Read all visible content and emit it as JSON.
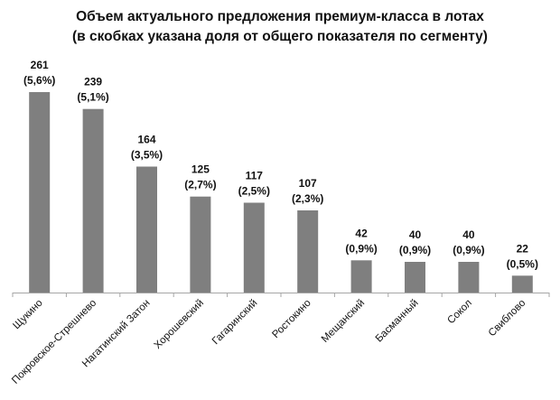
{
  "chart_data": {
    "type": "bar",
    "title": "Объем актуального предложения премиум-класса в лотах",
    "subtitle": "(в скобках указана доля от общего показателя по сегменту)",
    "categories": [
      "Щукино",
      "Покровское-Стрешнево",
      "Нагатинский Затон",
      "Хорошевский",
      "Гагаринский",
      "Ростокино",
      "Мещанский",
      "Басманный",
      "Сокол",
      "Свиблово"
    ],
    "values": [
      261,
      239,
      164,
      125,
      117,
      107,
      42,
      40,
      40,
      22
    ],
    "shares": [
      "(5,6%)",
      "(5,1%)",
      "(3,5%)",
      "(2,7%)",
      "(2,5%)",
      "(2,3%)",
      "(0,9%)",
      "(0,9%)",
      "(0,9%)",
      "(0,5%)"
    ],
    "xlabel": "",
    "ylabel": "",
    "ylim": [
      0,
      261
    ],
    "grid": false,
    "legend": "none",
    "colors": {
      "bar": "#7f7f7f",
      "axis": "#a6a6a6",
      "text": "#111111"
    }
  }
}
